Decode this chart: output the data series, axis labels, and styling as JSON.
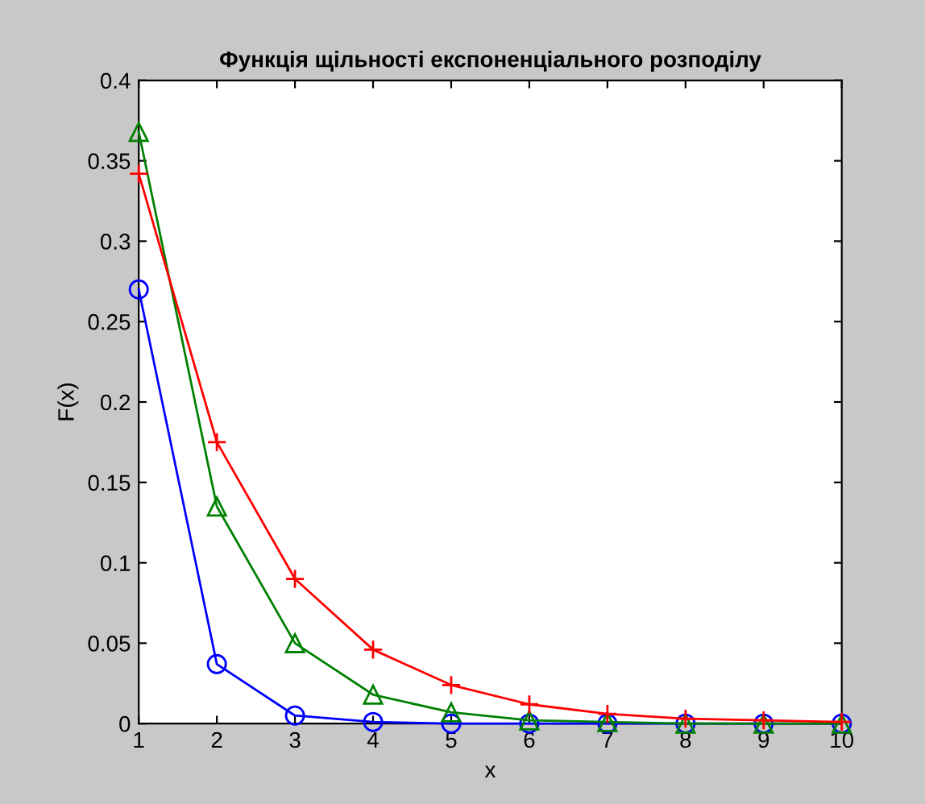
{
  "chart_data": {
    "type": "line",
    "title": "Функція щільності експоненціального розподілу",
    "xlabel": "x",
    "ylabel": "F(x)",
    "x": [
      1,
      2,
      3,
      4,
      5,
      6,
      7,
      8,
      9,
      10
    ],
    "series": [
      {
        "color": "#ff0000",
        "marker": "cross",
        "values": [
          0.342,
          0.175,
          0.09,
          0.046,
          0.024,
          0.012,
          0.006,
          0.003,
          0.002,
          0.001
        ]
      },
      {
        "color": "#008000",
        "marker": "triangle",
        "values": [
          0.368,
          0.135,
          0.05,
          0.018,
          0.007,
          0.002,
          0.001,
          0.0,
          0.0,
          0.0
        ]
      },
      {
        "color": "#0000ff",
        "marker": "circle",
        "values": [
          0.27,
          0.037,
          0.005,
          0.001,
          0.0,
          0.0,
          0.0,
          0.0,
          0.0,
          0.0
        ]
      }
    ],
    "xlim": [
      1,
      10
    ],
    "xticks": [
      1,
      2,
      3,
      4,
      5,
      6,
      7,
      8,
      9,
      10
    ],
    "ylim": [
      0,
      0.4
    ],
    "yticks": [
      0,
      0.05,
      0.1,
      0.15,
      0.2,
      0.25,
      0.3,
      0.35,
      0.4
    ],
    "grid": false,
    "legend": false
  }
}
